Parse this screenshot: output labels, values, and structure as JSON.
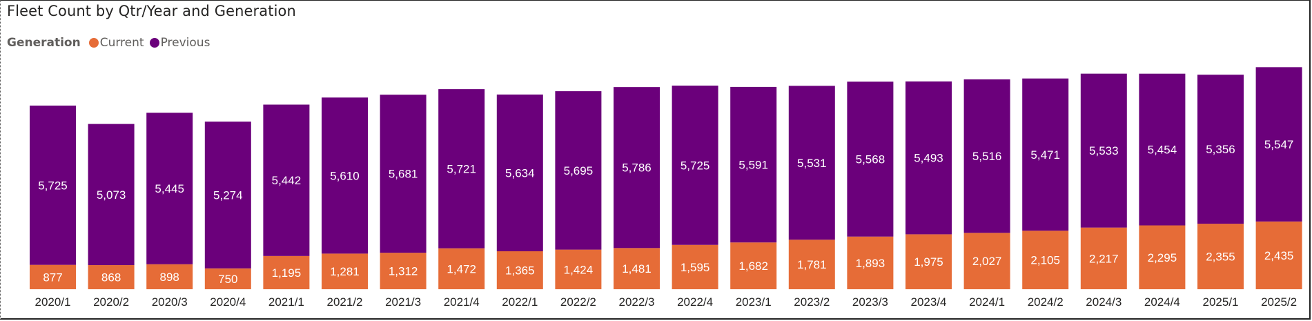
{
  "chart_data": {
    "type": "bar",
    "stacked": true,
    "title": "Fleet Count by Qtr/Year and Generation",
    "xlabel": "",
    "ylabel": "",
    "legend": {
      "title": "Generation",
      "position": "top-left"
    },
    "grid": false,
    "categories": [
      "2020/1",
      "2020/2",
      "2020/3",
      "2020/4",
      "2021/1",
      "2021/2",
      "2021/3",
      "2021/4",
      "2022/1",
      "2022/2",
      "2022/3",
      "2022/4",
      "2023/1",
      "2023/2",
      "2023/3",
      "2023/4",
      "2024/1",
      "2024/2",
      "2024/3",
      "2024/4",
      "2025/1",
      "2025/2"
    ],
    "series": [
      {
        "name": "Current",
        "color": "#E66C37",
        "values": [
          877,
          868,
          898,
          750,
          1195,
          1281,
          1312,
          1472,
          1365,
          1424,
          1481,
          1595,
          1682,
          1781,
          1893,
          1975,
          2027,
          2105,
          2217,
          2295,
          2355,
          2435
        ],
        "labels": [
          "877",
          "868",
          "898",
          "750",
          "1,195",
          "1,281",
          "1,312",
          "1,472",
          "1,365",
          "1,424",
          "1,481",
          "1,595",
          "1,682",
          "1,781",
          "1,893",
          "1,975",
          "2,027",
          "2,105",
          "2,217",
          "2,295",
          "2,355",
          "2,435"
        ]
      },
      {
        "name": "Previous",
        "color": "#6B007B",
        "values": [
          5725,
          5073,
          5445,
          5274,
          5442,
          5610,
          5681,
          5721,
          5634,
          5695,
          5786,
          5725,
          5591,
          5531,
          5568,
          5493,
          5516,
          5471,
          5533,
          5454,
          5356,
          5547
        ],
        "labels": [
          "5,725",
          "5,073",
          "5,445",
          "5,274",
          "5,442",
          "5,610",
          "5,681",
          "5,721",
          "5,634",
          "5,695",
          "5,786",
          "5,725",
          "5,591",
          "5,531",
          "5,568",
          "5,493",
          "5,516",
          "5,471",
          "5,533",
          "5,454",
          "5,356",
          "5,547"
        ]
      }
    ],
    "ylim": [
      0,
      8000
    ]
  }
}
